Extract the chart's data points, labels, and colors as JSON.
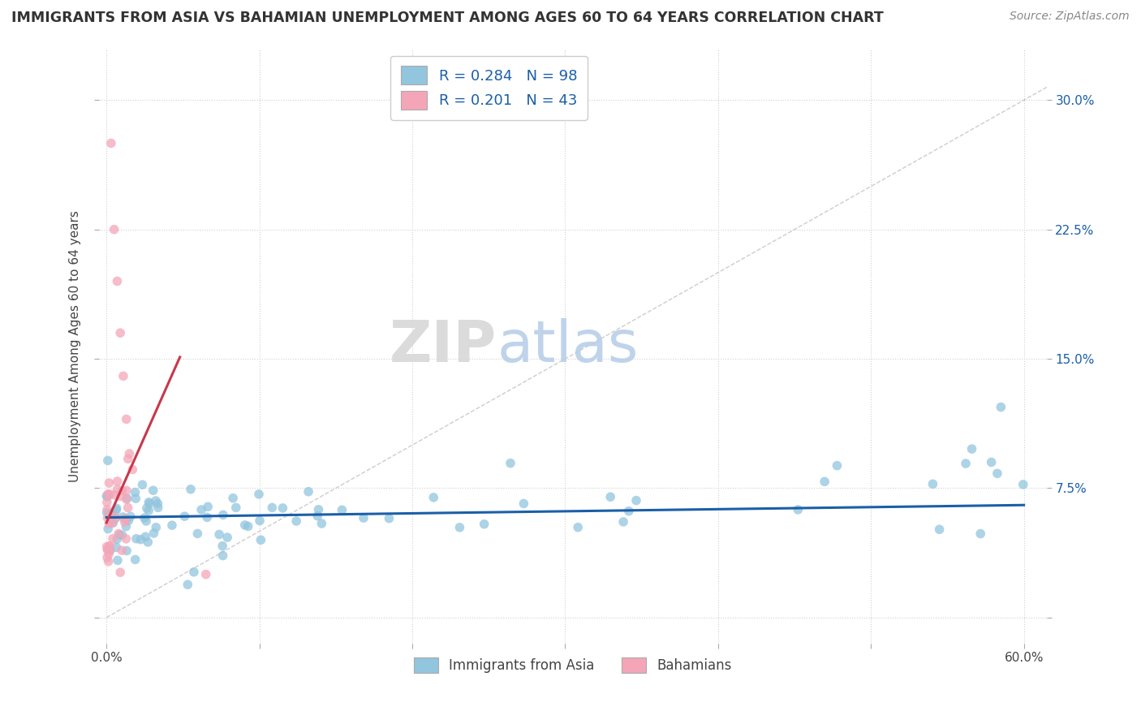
{
  "title": "IMMIGRANTS FROM ASIA VS BAHAMIAN UNEMPLOYMENT AMONG AGES 60 TO 64 YEARS CORRELATION CHART",
  "source": "Source: ZipAtlas.com",
  "ylabel": "Unemployment Among Ages 60 to 64 years",
  "legend_label1": "Immigrants from Asia",
  "legend_label2": "Bahamians",
  "R1": 0.284,
  "N1": 98,
  "R2": 0.201,
  "N2": 43,
  "xlim": [
    -0.005,
    0.615
  ],
  "ylim": [
    -0.015,
    0.33
  ],
  "xticks": [
    0.0,
    0.1,
    0.2,
    0.3,
    0.4,
    0.5,
    0.6
  ],
  "yticks": [
    0.0,
    0.075,
    0.15,
    0.225,
    0.3
  ],
  "ytick_labels_left": [
    "",
    "",
    "",
    "",
    ""
  ],
  "ytick_labels_right": [
    "",
    "7.5%",
    "15.0%",
    "22.5%",
    "30.0%"
  ],
  "xtick_labels": [
    "0.0%",
    "",
    "",
    "",
    "",
    "",
    "60.0%"
  ],
  "color_blue": "#92c5de",
  "color_pink": "#f4a6b8",
  "trend_color_blue": "#1a5fa8",
  "trend_color_pink": "#c8384a",
  "background_color": "#ffffff",
  "watermark_zip": "ZIP",
  "watermark_atlas": "atlas",
  "grid_color": "#d0d0d0"
}
